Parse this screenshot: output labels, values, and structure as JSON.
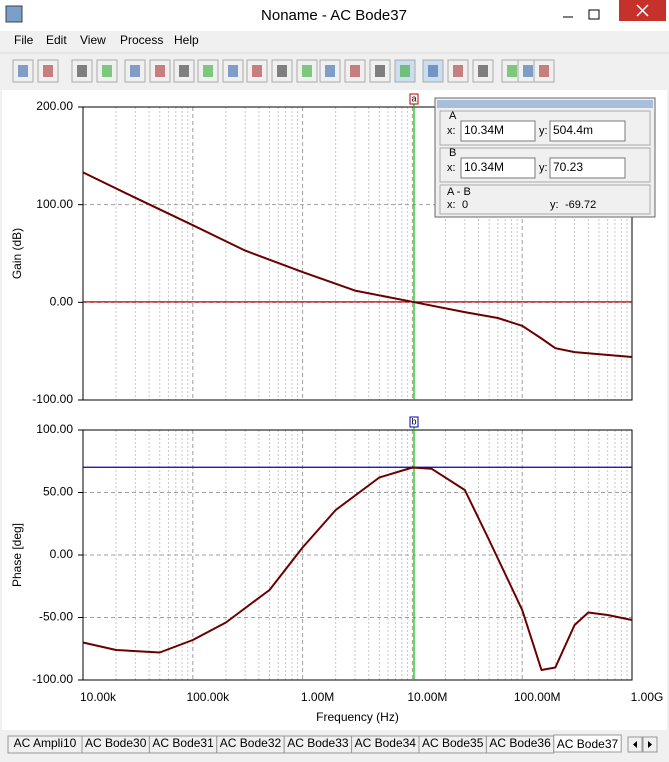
{
  "window": {
    "title": "Noname - AC Bode37",
    "menu": [
      "File",
      "Edit",
      "View",
      "Process",
      "Help"
    ],
    "tabs": [
      "AC Ampli10",
      "AC Bode30",
      "AC Bode31",
      "AC Bode32",
      "AC Bode33",
      "AC Bode34",
      "AC Bode35",
      "AC Bode36",
      "AC Bode37"
    ]
  },
  "panel": {
    "a": "A",
    "b": "B",
    "diff": "A - B",
    "x_prefix": "x:",
    "y_prefix": "y:",
    "diff_x": "0",
    "diff_y": "-69.72"
  },
  "chart_data": [
    {
      "type": "line",
      "ylabel": "Gain (dB)",
      "log_x": true,
      "grid": true,
      "x": [
        10000,
        30000,
        100000,
        300000,
        1000000,
        3000000,
        10000000,
        30000000,
        60000000,
        100000000,
        150000000,
        200000000,
        300000000,
        1000000000
      ],
      "series": [
        {
          "color": "#6b0000",
          "values": [
            133,
            107,
            79,
            53,
            31,
            12,
            0.5,
            -10,
            -16,
            -24,
            -37,
            -47,
            -51,
            -56
          ]
        }
      ],
      "xlim": [
        10000,
        1000000000
      ],
      "xticks": [
        10000,
        100000,
        1000000,
        10000000,
        100000000,
        1000000000
      ],
      "ylim": [
        -100,
        200
      ],
      "yticks": [
        {
          "value": -100,
          "label": "-100.00"
        },
        {
          "value": 0,
          "label": "0.00"
        },
        {
          "value": 100,
          "label": "100.00"
        },
        {
          "value": 200,
          "label": "200.00"
        }
      ],
      "cursor_label": "a",
      "cursor_color": "#c00000",
      "cursor": {
        "x": {
          "value": 10340000,
          "label": "10.34M"
        },
        "y": {
          "value": 0.5044,
          "label": "504.4m"
        }
      }
    },
    {
      "type": "line",
      "ylabel": "Phase [deg]",
      "xlabel": "Frequency (Hz)",
      "log_x": true,
      "grid": true,
      "x": [
        10000,
        20000,
        50000,
        100000,
        200000,
        500000,
        1000000,
        2000000,
        5000000,
        10000000,
        15000000,
        30000000,
        50000000,
        100000000,
        150000000,
        200000000,
        300000000,
        400000000,
        600000000,
        1000000000
      ],
      "series": [
        {
          "color": "#6b0000",
          "values": [
            -70,
            -76,
            -78,
            -68,
            -54,
            -28,
            6,
            36,
            62,
            70,
            69,
            52,
            12,
            -44,
            -92,
            -90,
            -56,
            -46,
            -48,
            -52
          ]
        }
      ],
      "xlim": [
        10000,
        1000000000
      ],
      "xticks": [
        {
          "value": 10000,
          "label": "10.00k"
        },
        {
          "value": 100000,
          "label": "100.00k"
        },
        {
          "value": 1000000,
          "label": "1.00M"
        },
        {
          "value": 10000000,
          "label": "10.00M"
        },
        {
          "value": 100000000,
          "label": "100.00M"
        },
        {
          "value": 1000000000,
          "label": "1.00G"
        }
      ],
      "ylim": [
        -100,
        100
      ],
      "yticks": [
        {
          "value": -100,
          "label": "-100.00"
        },
        {
          "value": -50,
          "label": "-50.00"
        },
        {
          "value": 0,
          "label": "0.00"
        },
        {
          "value": 50,
          "label": "50.00"
        },
        {
          "value": 100,
          "label": "100.00"
        }
      ],
      "cursor_label": "b",
      "cursor_color": "#0000c0",
      "cursor": {
        "x": {
          "value": 10340000,
          "label": "10.34M"
        },
        "y": {
          "value": 70.23,
          "label": "70.23"
        }
      }
    }
  ]
}
